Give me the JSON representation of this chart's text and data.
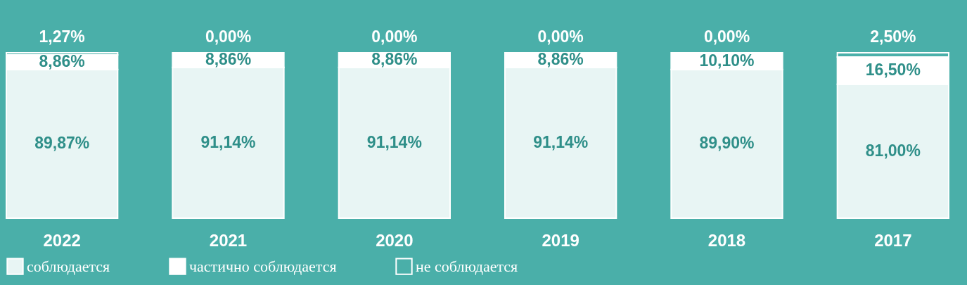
{
  "chart_data": {
    "type": "bar",
    "stacked": true,
    "categories": [
      "2022",
      "2021",
      "2020",
      "2019",
      "2018",
      "2017"
    ],
    "ylim": [
      0,
      100
    ],
    "tick_labels": "x",
    "legend": "bottom",
    "series": [
      {
        "name": "соблюдается",
        "color": "#e8f5f4",
        "values": [
          89.87,
          91.14,
          91.14,
          91.14,
          89.9,
          81.0
        ],
        "value_labels": [
          "89,87%",
          "91,14%",
          "91,14%",
          "91,14%",
          "89,90%",
          "81,00%"
        ]
      },
      {
        "name": "частично соблюдается",
        "color": "#ffffff",
        "values": [
          8.86,
          8.86,
          8.86,
          8.86,
          10.1,
          16.5
        ],
        "value_labels": [
          "8,86%",
          "8,86%",
          "8,86%",
          "8,86%",
          "10,10%",
          "16,50%"
        ]
      },
      {
        "name": "не соблюдается",
        "color": "#4aafa9",
        "values": [
          1.27,
          0.0,
          0.0,
          0.0,
          0.0,
          2.5
        ],
        "value_labels": [
          "1,27%",
          "0,00%",
          "0,00%",
          "0,00%",
          "0,00%",
          "2,50%"
        ]
      }
    ]
  }
}
